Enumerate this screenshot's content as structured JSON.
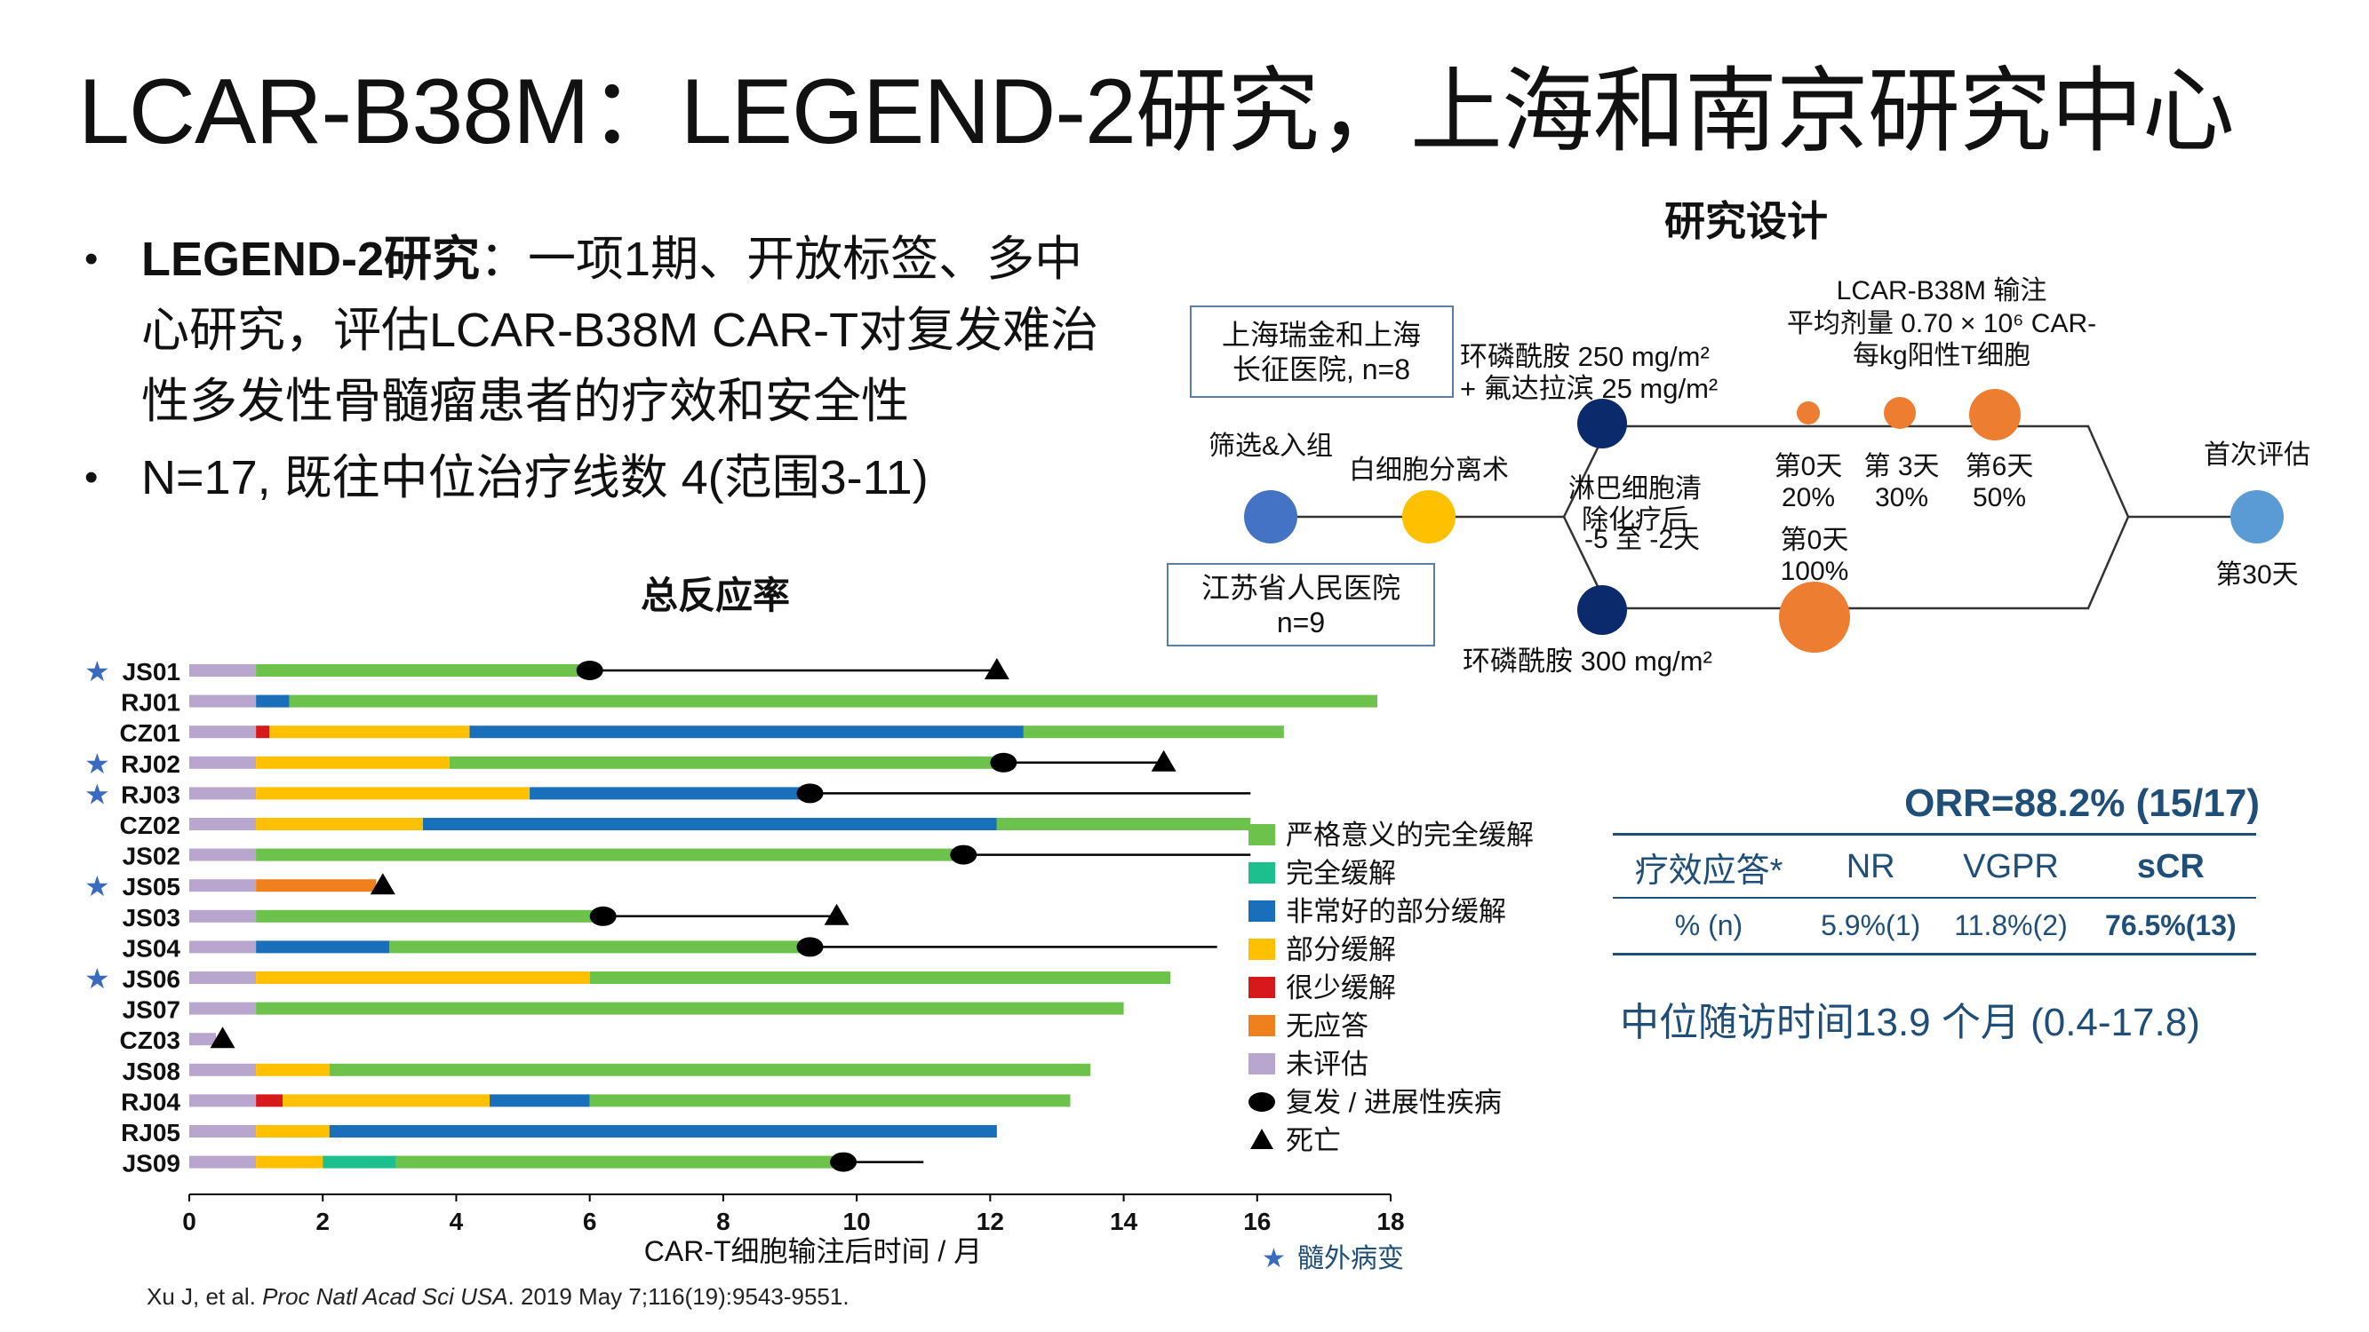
{
  "slide": {
    "title": "LCAR-B38M：LEGEND-2研究，上海和南京研究中心",
    "bullets": [
      {
        "bold": "LEGEND-2研究",
        "text": "：一项1期、开放标签、多中心研究，评估LCAR-B38M CAR-T对复发难治性多发性骨髓瘤患者的疗效和安全性"
      },
      {
        "bold": "",
        "text": "N=17, 既往中位治疗线数 4(范围3-11)"
      }
    ],
    "citation": {
      "authors": "Xu J, et al. ",
      "journal": "Proc Natl Acad Sci USA",
      "rest": ". 2019 May 7;116(19):9543-9551."
    }
  },
  "design": {
    "title": "研究设计",
    "site1": "上海瑞金和上海长征医院, n=8",
    "site1_lines": [
      "上海瑞金和上海",
      "长征医院, n=8"
    ],
    "site2_lines": [
      "江苏省人民医院",
      "n=9"
    ],
    "screening": "筛选&入组",
    "apheresis": "白细胞分离术",
    "lymphodepletion_lines": [
      "淋巴细胞清",
      "除化疗后",
      "-5 至 -2天"
    ],
    "regimen_top_lines": [
      "环磷酰胺 250 mg/m²",
      "+ 氟达拉滨 25 mg/m²"
    ],
    "regimen_bottom": "环磷酰胺 300 mg/m²",
    "infusion_lines": [
      "LCAR-B38M 输注",
      "平均剂量  0.70 × 10⁶ CAR-",
      "每kg阳性T细胞"
    ],
    "split_doses": [
      {
        "day": "第0天",
        "pct": "20%"
      },
      {
        "day": "第 3天",
        "pct": "30%"
      },
      {
        "day": "第6天",
        "pct": "50%"
      }
    ],
    "single_dose": {
      "day": "第0天",
      "pct": "100%"
    },
    "first_eval": "首次评估",
    "first_eval_day": "第30天",
    "colors": {
      "screen": "#4472c4",
      "apheresis": "#ffc000",
      "chemo": "#0b2a6b",
      "dose": "#ed7d31",
      "eval": "#5b9bd5"
    }
  },
  "orr": {
    "title": "ORR=88.2% (15/17)",
    "headers": [
      "疗效应答*",
      "NR",
      "VGPR",
      "sCR"
    ],
    "row": [
      "% (n)",
      "5.9%(1)",
      "11.8%(2)",
      "76.5%(13)"
    ],
    "followup": "中位随访时间13.9 个月 (0.4-17.8)"
  },
  "chart_data": {
    "type": "swimmer",
    "title": "总反应率",
    "xlabel": "CAR-T细胞输注后时间 / 月",
    "xlim": [
      0,
      18
    ],
    "xticks": [
      0,
      2,
      4,
      6,
      8,
      10,
      12,
      14,
      16,
      18
    ],
    "legend": [
      {
        "key": "sCR",
        "label": "严格意义的完全缓解",
        "color": "#6cc24a"
      },
      {
        "key": "CR",
        "label": "完全缓解",
        "color": "#1dbf8f"
      },
      {
        "key": "VGPR",
        "label": "非常好的部分缓解",
        "color": "#1a6fba"
      },
      {
        "key": "PR",
        "label": "部分缓解",
        "color": "#ffc000"
      },
      {
        "key": "MR",
        "label": "很少缓解",
        "color": "#d7191c"
      },
      {
        "key": "NR",
        "label": "无应答",
        "color": "#f07f1e"
      },
      {
        "key": "NE",
        "label": "未评估",
        "color": "#b9a6cf"
      },
      {
        "key": "relapse",
        "label": "复发 / 进展性疾病",
        "color": "#000000"
      },
      {
        "key": "death",
        "label": "死亡",
        "color": "#000000"
      }
    ],
    "star_label": "髓外病变",
    "star_color": "#3a6bbf",
    "patients": [
      {
        "id": "JS01",
        "star": true,
        "segments": [
          [
            "NE",
            0,
            1
          ],
          [
            "sCR",
            1,
            6
          ]
        ],
        "line": [
          6,
          12.1
        ],
        "relapse": 6,
        "death": 12.1
      },
      {
        "id": "RJ01",
        "star": false,
        "segments": [
          [
            "NE",
            0,
            1
          ],
          [
            "VGPR",
            1,
            1.5
          ],
          [
            "sCR",
            1.5,
            17.8
          ]
        ]
      },
      {
        "id": "CZ01",
        "star": false,
        "segments": [
          [
            "NE",
            0,
            1
          ],
          [
            "MR",
            1,
            1.2
          ],
          [
            "PR",
            1.2,
            4.2
          ],
          [
            "VGPR",
            4.2,
            12.5
          ],
          [
            "sCR",
            12.5,
            16.4
          ]
        ]
      },
      {
        "id": "RJ02",
        "star": true,
        "segments": [
          [
            "NE",
            0,
            1
          ],
          [
            "PR",
            1,
            3.9
          ],
          [
            "sCR",
            3.9,
            12.2
          ]
        ],
        "line": [
          12.2,
          14.6
        ],
        "relapse": 12.2,
        "death": 14.6
      },
      {
        "id": "RJ03",
        "star": true,
        "segments": [
          [
            "NE",
            0,
            1
          ],
          [
            "PR",
            1,
            5.1
          ],
          [
            "VGPR",
            5.1,
            9.3
          ]
        ],
        "line": [
          9.3,
          15.9
        ],
        "relapse": 9.3
      },
      {
        "id": "CZ02",
        "star": false,
        "segments": [
          [
            "NE",
            0,
            1
          ],
          [
            "PR",
            1,
            3.5
          ],
          [
            "VGPR",
            3.5,
            12.1
          ],
          [
            "sCR",
            12.1,
            15.9
          ]
        ]
      },
      {
        "id": "JS02",
        "star": false,
        "segments": [
          [
            "NE",
            0,
            1
          ],
          [
            "sCR",
            1,
            11.6
          ]
        ],
        "line": [
          11.6,
          15.9
        ],
        "relapse": 11.6
      },
      {
        "id": "JS05",
        "star": true,
        "segments": [
          [
            "NE",
            0,
            1
          ],
          [
            "NR",
            1,
            2.8
          ]
        ],
        "death": 2.9
      },
      {
        "id": "JS03",
        "star": false,
        "segments": [
          [
            "NE",
            0,
            1
          ],
          [
            "sCR",
            1,
            6.2
          ]
        ],
        "line": [
          6.2,
          9.7
        ],
        "relapse": 6.2,
        "death": 9.7
      },
      {
        "id": "JS04",
        "star": false,
        "segments": [
          [
            "NE",
            0,
            1
          ],
          [
            "VGPR",
            1,
            3
          ],
          [
            "sCR",
            3,
            9.3
          ]
        ],
        "line": [
          9.3,
          15.4
        ],
        "relapse": 9.3
      },
      {
        "id": "JS06",
        "star": true,
        "segments": [
          [
            "NE",
            0,
            1
          ],
          [
            "PR",
            1,
            6
          ],
          [
            "sCR",
            6,
            14.7
          ]
        ]
      },
      {
        "id": "JS07",
        "star": false,
        "segments": [
          [
            "NE",
            0,
            1
          ],
          [
            "sCR",
            1,
            14
          ]
        ]
      },
      {
        "id": "CZ03",
        "star": false,
        "segments": [
          [
            "NE",
            0,
            0.4
          ]
        ],
        "death": 0.5
      },
      {
        "id": "JS08",
        "star": false,
        "segments": [
          [
            "NE",
            0,
            1
          ],
          [
            "PR",
            1,
            2.1
          ],
          [
            "sCR",
            2.1,
            13.5
          ]
        ]
      },
      {
        "id": "RJ04",
        "star": false,
        "segments": [
          [
            "NE",
            0,
            1
          ],
          [
            "MR",
            1,
            1.4
          ],
          [
            "PR",
            1.4,
            4.5
          ],
          [
            "VGPR",
            4.5,
            6
          ],
          [
            "sCR",
            6,
            13.2
          ]
        ]
      },
      {
        "id": "RJ05",
        "star": false,
        "segments": [
          [
            "NE",
            0,
            1
          ],
          [
            "PR",
            1,
            2.1
          ],
          [
            "VGPR",
            2.1,
            12.1
          ]
        ]
      },
      {
        "id": "JS09",
        "star": false,
        "segments": [
          [
            "NE",
            0,
            1
          ],
          [
            "PR",
            1,
            2
          ],
          [
            "CR",
            2,
            3.1
          ],
          [
            "sCR",
            3.1,
            9.8
          ]
        ],
        "line": [
          9.8,
          11
        ],
        "relapse": 9.8
      }
    ]
  }
}
